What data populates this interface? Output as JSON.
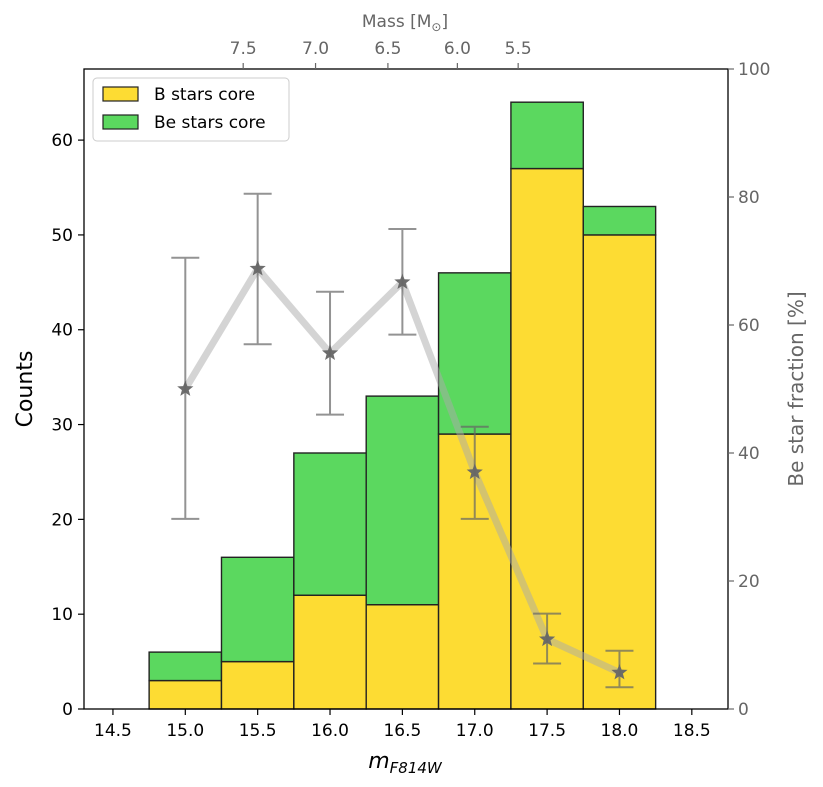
{
  "chart_data": {
    "type": "bar",
    "stacked": true,
    "bin_centers": [
      15.0,
      15.5,
      16.0,
      16.5,
      17.0,
      17.5,
      18.0
    ],
    "bin_width": 0.5,
    "series": [
      {
        "name": "B stars core",
        "color": "#fddc33",
        "values": [
          3,
          5,
          12,
          11,
          29,
          57,
          50
        ]
      },
      {
        "name": "Be stars core",
        "color": "#5bd85f",
        "values": [
          3,
          11,
          15,
          22,
          17,
          7,
          3
        ]
      }
    ],
    "fraction_series": {
      "name": "Be star fraction",
      "x": [
        15.0,
        15.5,
        16.0,
        16.5,
        17.0,
        17.5,
        18.0
      ],
      "y": [
        50,
        68.8,
        55.6,
        66.7,
        37.0,
        10.9,
        5.7
      ],
      "err_low": [
        20.3,
        11.8,
        9.6,
        8.2,
        7.3,
        3.8,
        2.3
      ],
      "err_high": [
        20.5,
        11.7,
        9.6,
        8.3,
        7.1,
        4.0,
        3.4
      ],
      "color": "#666666"
    },
    "xlabel_main": "m",
    "xlabel_sub": "F814W",
    "ylabel": "Counts",
    "ylabel_right": "Be star fraction [%]",
    "xlabel_top_prefix": "Mass [M",
    "xlabel_top_symbol": "⊙",
    "xlabel_top_suffix": "]",
    "xlim": [
      14.3,
      18.75
    ],
    "ylim": [
      0,
      67.5
    ],
    "ylim_right": [
      0,
      100
    ],
    "xticks": [
      14.5,
      15.0,
      15.5,
      16.0,
      16.5,
      17.0,
      17.5,
      18.0,
      18.5
    ],
    "xtick_labels": [
      "14.5",
      "15.0",
      "15.5",
      "16.0",
      "16.5",
      "17.0",
      "17.5",
      "18.0",
      "18.5"
    ],
    "yticks": [
      0,
      10,
      20,
      30,
      40,
      50,
      60
    ],
    "ytick_labels": [
      "0",
      "10",
      "20",
      "30",
      "40",
      "50",
      "60"
    ],
    "yticks_right": [
      0,
      20,
      40,
      60,
      80,
      100
    ],
    "ytick_labels_right": [
      "0",
      "20",
      "40",
      "60",
      "80",
      "100"
    ],
    "top_ticks_mag": [
      15.4,
      15.9,
      16.4,
      16.88,
      17.3
    ],
    "top_tick_labels": [
      "7.5",
      "7.0",
      "6.5",
      "6.0",
      "5.5"
    ],
    "legend": {
      "placement": "top-left",
      "entries": [
        "B stars core",
        "Be stars core"
      ]
    }
  }
}
